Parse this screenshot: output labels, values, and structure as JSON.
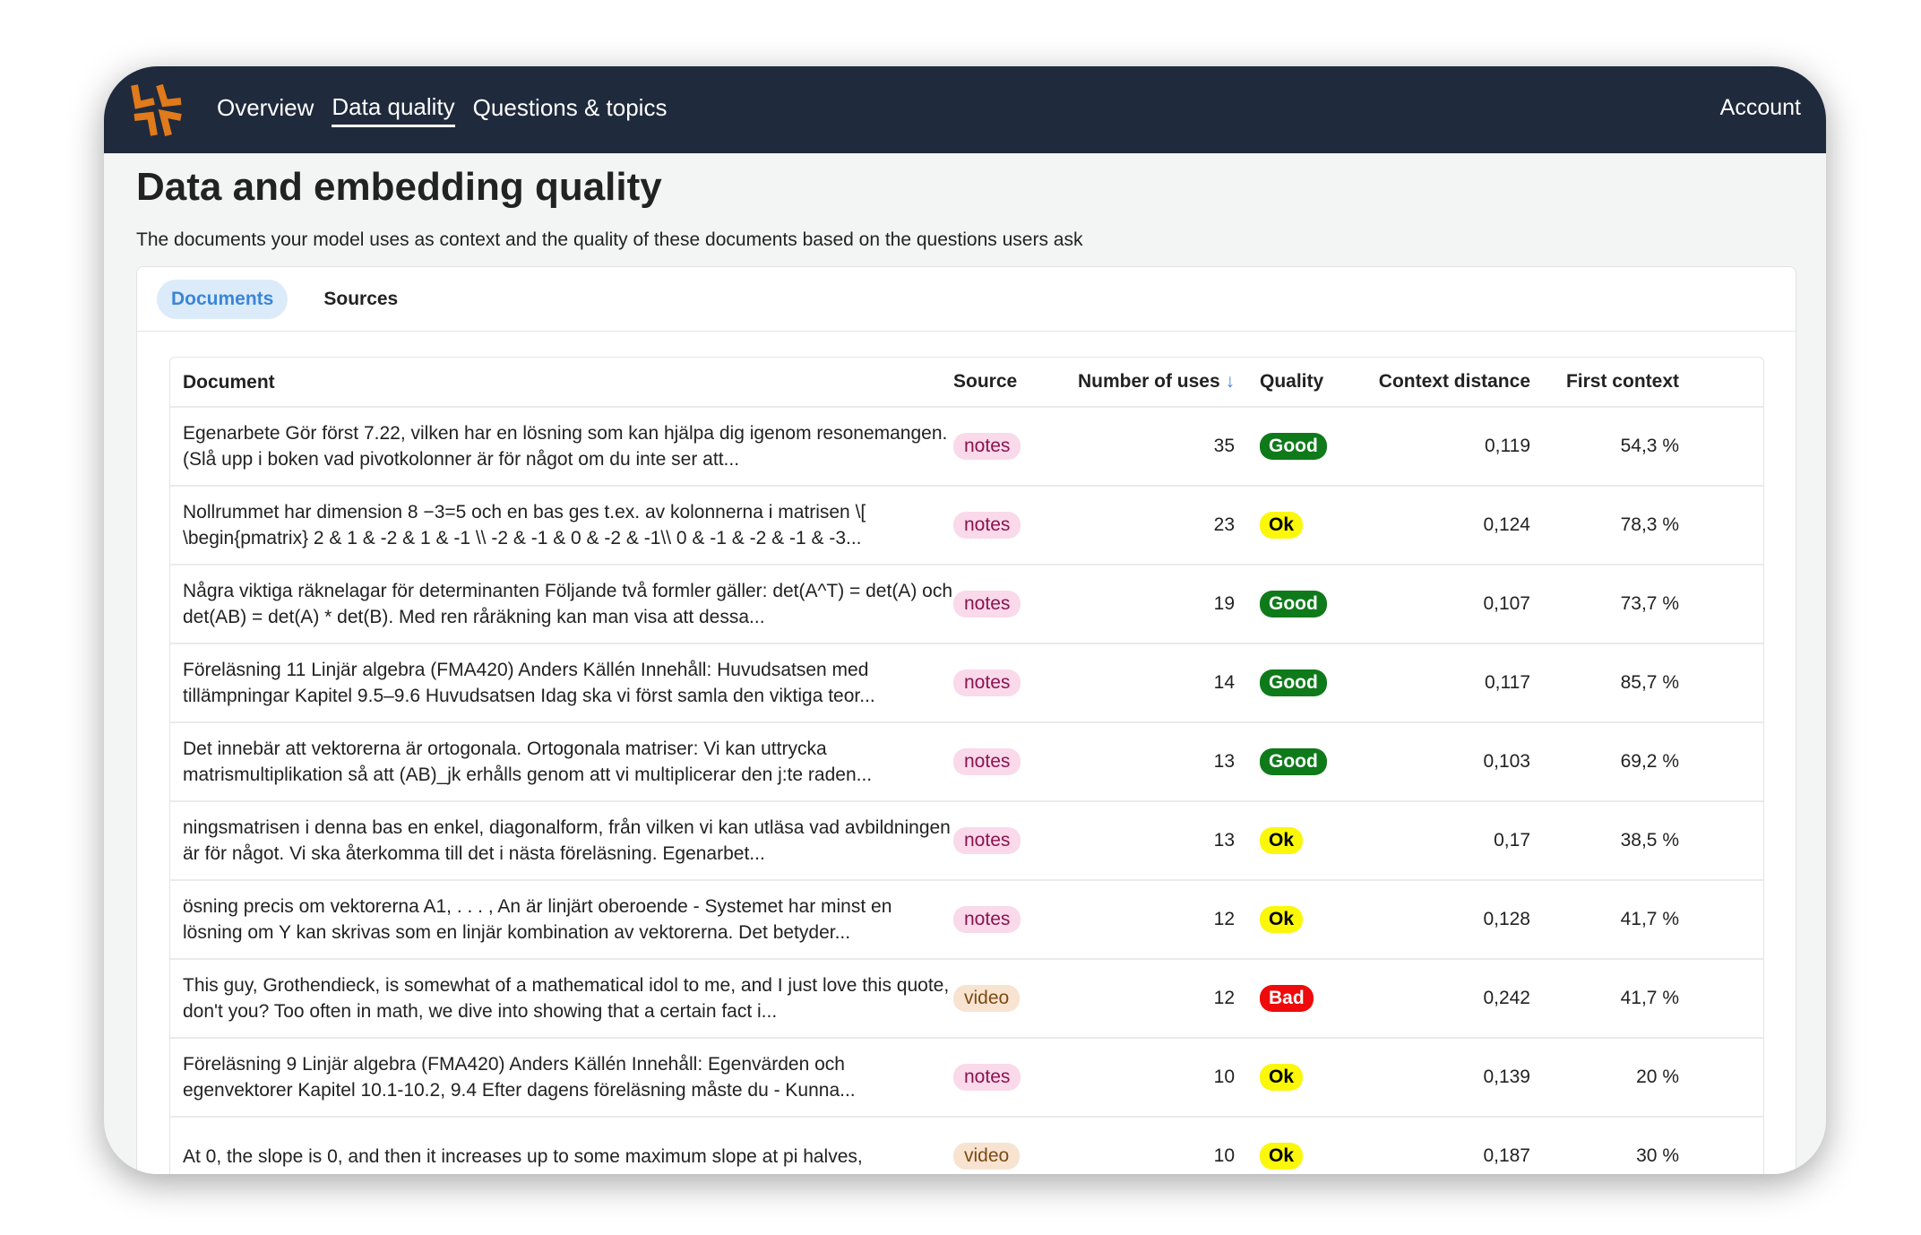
{
  "nav": {
    "items": [
      {
        "label": "Overview"
      },
      {
        "label": "Data quality",
        "active": true
      },
      {
        "label": "Questions & topics"
      }
    ],
    "account": "Account",
    "logo_color": "#e07a1a"
  },
  "page": {
    "title": "Data and embedding quality",
    "subtitle": "The documents your model uses as context and the quality of these documents based on the questions users ask"
  },
  "tabs": [
    {
      "label": "Documents",
      "active": true
    },
    {
      "label": "Sources"
    }
  ],
  "table": {
    "headers": {
      "document": "Document",
      "source": "Source",
      "uses": "Number of uses",
      "quality": "Quality",
      "distance": "Context distance",
      "first": "First context"
    },
    "sort": {
      "column": "uses",
      "direction": "desc",
      "icon": "arrow-down-icon"
    },
    "rows": [
      {
        "document": "Egenarbete Gör först 7.22, vilken har en lösning som kan hjälpa dig igenom resonemangen. (Slå upp i boken vad pivotkolonner är för något om du inte ser att...",
        "source": "notes",
        "uses": "35",
        "quality": "Good",
        "distance": "0,119",
        "first": "54,3 %"
      },
      {
        "document": "Nollrummet har dimension 8 −3=5 och en bas ges t.ex. av kolonnerna i matrisen \\[ \\begin{pmatrix} 2 & 1 & -2 & 1 & -1 \\\\ -2 & -1 & 0 & -2 & -1\\\\ 0 & -1 & -2 & -1 & -3...",
        "source": "notes",
        "uses": "23",
        "quality": "Ok",
        "distance": "0,124",
        "first": "78,3 %"
      },
      {
        "document": "Några viktiga räknelagar för determinanten Följande två formler gäller: det(A^T) = det(A) och det(AB) = det(A) * det(B). Med ren råräkning kan man visa att dessa...",
        "source": "notes",
        "uses": "19",
        "quality": "Good",
        "distance": "0,107",
        "first": "73,7 %"
      },
      {
        "document": "Föreläsning 11 Linjär algebra (FMA420) Anders Källén Innehåll: Huvudsatsen med tillämpningar Kapitel 9.5–9.6 Huvudsatsen Idag ska vi först samla den viktiga teor...",
        "source": "notes",
        "uses": "14",
        "quality": "Good",
        "distance": "0,117",
        "first": "85,7 %"
      },
      {
        "document": "Det innebär att vektorerna är ortogonala. Ortogonala matriser: Vi kan uttrycka matrismultiplikation så att (AB)_jk erhålls genom att vi multiplicerar den j:te raden...",
        "source": "notes",
        "uses": "13",
        "quality": "Good",
        "distance": "0,103",
        "first": "69,2 %"
      },
      {
        "document": "ningsmatrisen i denna bas en enkel, diagonalform, från vilken vi kan utläsa vad avbildningen är för något. Vi ska återkomma till det i nästa föreläsning. Egenarbet...",
        "source": "notes",
        "uses": "13",
        "quality": "Ok",
        "distance": "0,17",
        "first": "38,5 %"
      },
      {
        "document": "ösning precis om vektorerna A1, . . . , An är linjärt oberoende - Systemet har minst en lösning om Y kan skrivas som en linjär kombination av vektorerna. Det betyder...",
        "source": "notes",
        "uses": "12",
        "quality": "Ok",
        "distance": "0,128",
        "first": "41,7 %"
      },
      {
        "document": "This guy, Grothendieck, is somewhat of a mathematical idol to me, and I just love this quote, don't you? Too often in math, we dive into showing that a certain fact i...",
        "source": "video",
        "uses": "12",
        "quality": "Bad",
        "distance": "0,242",
        "first": "41,7 %"
      },
      {
        "document": "Föreläsning 9 Linjär algebra (FMA420) Anders Källén Innehåll: Egenvärden och egenvektorer Kapitel 10.1-10.2, 9.4 Efter dagens föreläsning måste du - Kunna...",
        "source": "notes",
        "uses": "10",
        "quality": "Ok",
        "distance": "0,139",
        "first": "20 %"
      },
      {
        "document": "At 0, the slope is 0, and then it increases up to some maximum slope at pi halves,",
        "source": "video",
        "uses": "10",
        "quality": "Ok",
        "distance": "0,187",
        "first": "30 %"
      }
    ]
  },
  "colors": {
    "nav_bg": "#1f2a3c",
    "good": "#0f7a1a",
    "ok": "#fbf70b",
    "bad": "#ee0b0b",
    "accent": "#3a86d6"
  }
}
